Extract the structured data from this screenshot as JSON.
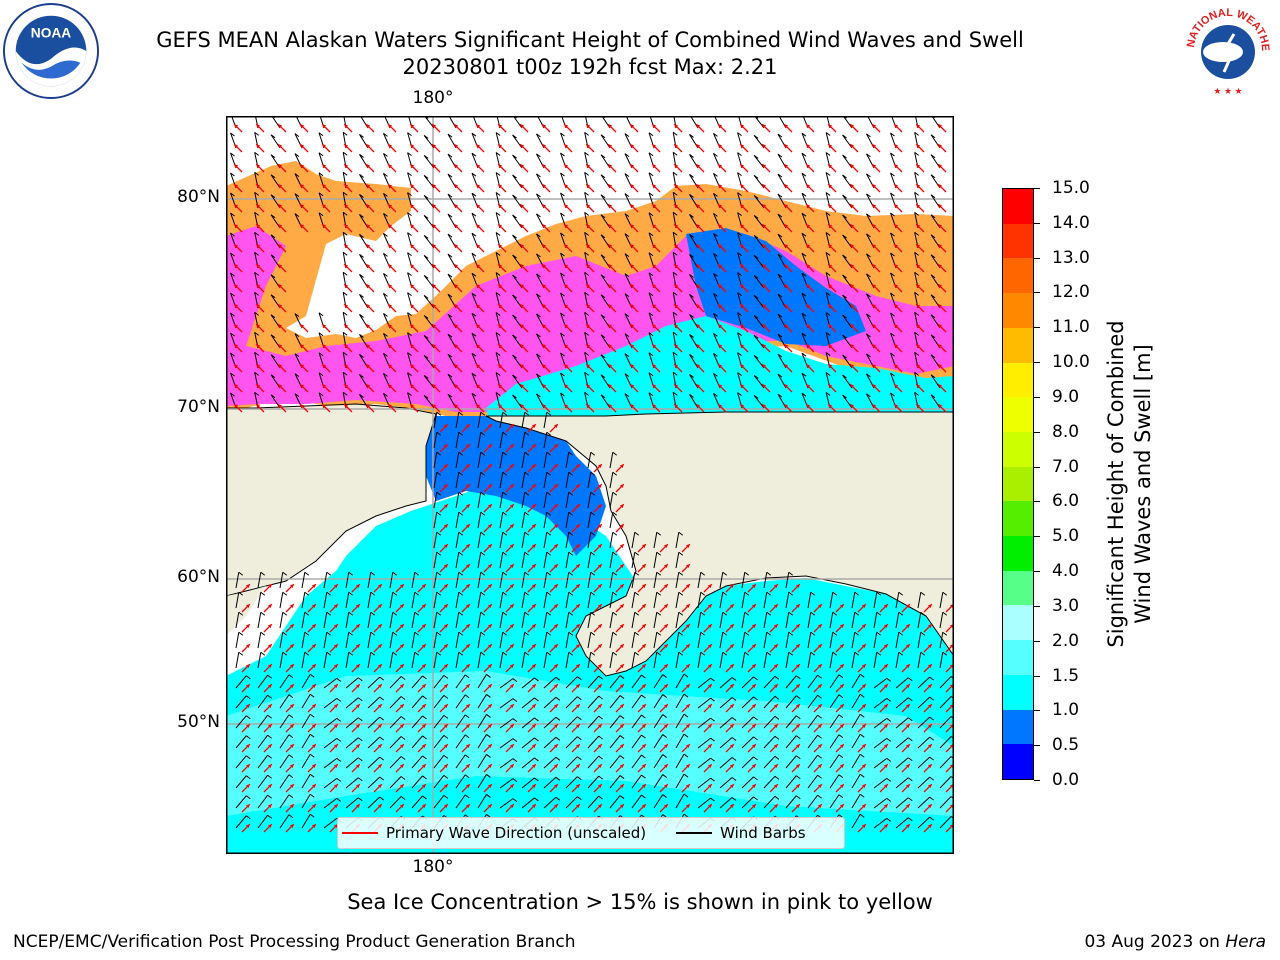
{
  "header": {
    "title_line1": "GEFS MEAN Alaskan Waters Significant Height of Combined Wind Waves and Swell",
    "title_line2": "20230801 t00z 192h fcst   Max: 2.21"
  },
  "logos": {
    "left": {
      "icon": "noaa-logo-icon",
      "text": "NOAA",
      "ring_text": "NATIONAL OCEANIC AND ATMOSPHERIC ADMINISTRATION · U.S. DEPARTMENT OF COMMERCE"
    },
    "right": {
      "icon": "nws-logo-icon",
      "ring_text": "NATIONAL WEATHER SERVICE"
    }
  },
  "map": {
    "lon_labels": {
      "top": "180°",
      "bottom": "180°"
    },
    "lat_labels": [
      "80°N",
      "70°N",
      "60°N",
      "50°N"
    ],
    "colors": {
      "land": "#efeedd",
      "ocean_low": "#00ffff",
      "ocean_mid": "#55ffff",
      "ocean_calm": "#0077ff",
      "sea_ice_pink": "#ff55ee",
      "sea_ice_orange": "#ffaa44",
      "sea_ice_yellow": "#ffdd22",
      "wave_arrow": "#ff0000",
      "wind_barb": "#000000",
      "grid": "#aaaaaa"
    }
  },
  "legend": {
    "wave_label": "Primary Wave Direction (unscaled)",
    "barb_label": "Wind Barbs"
  },
  "colorbar": {
    "label_line1": "Significant Height of Combined",
    "label_line2": "Wind Waves and Swell [m]",
    "ticks": [
      "0.0",
      "0.5",
      "1.0",
      "1.5",
      "2.0",
      "3.0",
      "4.0",
      "5.0",
      "6.0",
      "7.0",
      "8.0",
      "9.0",
      "10.0",
      "11.0",
      "12.0",
      "13.0",
      "14.0",
      "15.0"
    ],
    "colors": [
      "#0000ff",
      "#0077ff",
      "#00ffff",
      "#55ffff",
      "#aaffff",
      "#55ff88",
      "#00ee00",
      "#55ee00",
      "#aaee00",
      "#ccff00",
      "#eeff00",
      "#ffee00",
      "#ffbb00",
      "#ff8800",
      "#ff6600",
      "#ff3300",
      "#ff0000"
    ]
  },
  "notes": {
    "sea_ice": "Sea Ice Concentration > 15% is shown in pink to yellow",
    "footer_left": "NCEP/EMC/Verification Post Processing Product Generation Branch",
    "footer_date": "03 Aug 2023 on",
    "footer_host": "Hera"
  }
}
